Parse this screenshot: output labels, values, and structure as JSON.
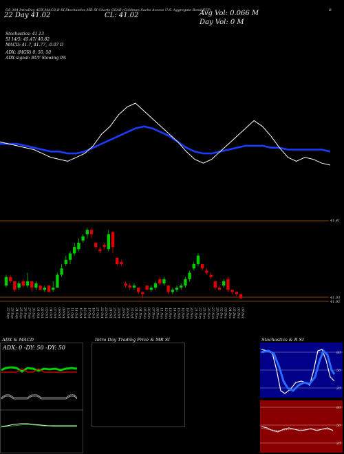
{
  "header": {
    "line1": "GS 304 IntraDay ADX,MACD,R SI,Stochastics,MR SI Charts GSAB (Goldman Sachs Access U.S. Aggregate Bond ETF)",
    "right_mark": "B",
    "left_date": "22 Day 41.02",
    "close_label": "CL: 41.02",
    "volume_label": "Avg Vol: 0.066 M",
    "day_vol_label": "Day Vol: 0 M"
  },
  "info_lines": [
    "Stochastics: 41.13",
    "SI 14/5: 45.47/ 40.82",
    "MACD: 41.7, 41.77, -0.07 D",
    "ADX: (MGR) 0, 50, 50",
    "ADX signal: BUY Slowing 0%"
  ],
  "price_labels": {
    "upper": "41.41",
    "lower1": "41.03",
    "lower2": "41.02"
  },
  "panels": {
    "adx_title": "ADX & MACD",
    "adx_text": "ADX: 0 -DY: 50 -DY: 50",
    "intra_title": "Intra Day Trading Price & MR SI",
    "stoch_title": "Stochastics & R SI",
    "stoch_ticks": [
      "80",
      "50",
      "20"
    ],
    "rsi_ticks": [
      "80",
      "50",
      "20"
    ]
  },
  "colors": {
    "up": "#00cc00",
    "down": "#e00000",
    "avg_line": "#1a3cff",
    "price_line": "#ffffff",
    "level_line": "#b35a00"
  },
  "chart_data": {
    "type": "line",
    "title": "GSAB",
    "dates": [
      "22 Sep",
      "23 Sep",
      "24 Sep",
      "25 Sep",
      "26 Sep",
      "27 Sep",
      "30 Sep",
      "01 Oct",
      "02 Oct",
      "03 Oct",
      "04 Oct",
      "07 Oct",
      "08 Oct",
      "09 Oct",
      "10 Oct",
      "11 Oct",
      "14 Oct",
      "15 Oct",
      "16 Oct",
      "17 Oct",
      "18 Oct",
      "21 Oct",
      "22 Oct",
      "23 Oct",
      "24 Oct",
      "25 Oct",
      "28 Oct",
      "29 Oct",
      "30 Oct",
      "31 Oct",
      "01 Nov",
      "04 Nov",
      "05 Nov",
      "06 Nov",
      "07 Nov",
      "08 Nov",
      "11 Nov",
      "12 Nov",
      "13 Nov",
      "14 Nov",
      "15 Nov",
      "18 Nov",
      "19 Nov",
      "20 Nov",
      "21 Nov",
      "22 Nov",
      "25 Nov",
      "26 Nov",
      "27 Nov",
      "29 Nov",
      "02 Dec",
      "03 Dec",
      "04 Dec",
      "05 Dec",
      "06 Dec",
      "09 Dec"
    ],
    "candles": [
      {
        "o": 41.08,
        "c": 41.12,
        "h": 41.13,
        "l": 41.07
      },
      {
        "o": 41.12,
        "c": 41.1,
        "h": 41.13,
        "l": 41.09
      },
      {
        "o": 41.1,
        "c": 41.06,
        "h": 41.1,
        "l": 41.05
      },
      {
        "o": 41.07,
        "c": 41.09,
        "h": 41.1,
        "l": 41.06
      },
      {
        "o": 41.1,
        "c": 41.08,
        "h": 41.11,
        "l": 41.07
      },
      {
        "o": 41.08,
        "c": 41.1,
        "h": 41.14,
        "l": 41.07
      },
      {
        "o": 41.1,
        "c": 41.07,
        "h": 41.1,
        "l": 41.05
      },
      {
        "o": 41.07,
        "c": 41.09,
        "h": 41.1,
        "l": 41.06
      },
      {
        "o": 41.08,
        "c": 41.06,
        "h": 41.08,
        "l": 41.06
      },
      {
        "o": 41.06,
        "c": 41.07,
        "h": 41.08,
        "l": 41.05
      },
      {
        "o": 41.08,
        "c": 41.05,
        "h": 41.08,
        "l": 41.05
      },
      {
        "o": 41.06,
        "c": 41.07,
        "h": 41.1,
        "l": 41.05
      },
      {
        "o": 41.07,
        "c": 41.13,
        "h": 41.14,
        "l": 41.07
      },
      {
        "o": 41.13,
        "c": 41.16,
        "h": 41.18,
        "l": 41.12
      },
      {
        "o": 41.18,
        "c": 41.2,
        "h": 41.22,
        "l": 41.17
      },
      {
        "o": 41.2,
        "c": 41.23,
        "h": 41.24,
        "l": 41.18
      },
      {
        "o": 41.23,
        "c": 41.26,
        "h": 41.28,
        "l": 41.22
      },
      {
        "o": 41.25,
        "c": 41.28,
        "h": 41.3,
        "l": 41.24
      },
      {
        "o": 41.29,
        "c": 41.31,
        "h": 41.32,
        "l": 41.28
      },
      {
        "o": 41.32,
        "c": 41.34,
        "h": 41.35,
        "l": 41.3
      },
      {
        "o": 41.34,
        "c": 41.32,
        "h": 41.35,
        "l": 41.3
      },
      {
        "o": 41.28,
        "c": 41.26,
        "h": 41.28,
        "l": 41.25
      },
      {
        "o": 41.25,
        "c": 41.24,
        "h": 41.26,
        "l": 41.23
      },
      {
        "o": 41.27,
        "c": 41.26,
        "h": 41.28,
        "l": 41.25
      },
      {
        "o": 41.25,
        "c": 41.32,
        "h": 41.34,
        "l": 41.24
      },
      {
        "o": 41.33,
        "c": 41.26,
        "h": 41.33,
        "l": 41.23
      },
      {
        "o": 41.21,
        "c": 41.18,
        "h": 41.21,
        "l": 41.17
      },
      {
        "o": 41.19,
        "c": 41.18,
        "h": 41.2,
        "l": 41.17
      },
      {
        "o": 41.09,
        "c": 41.08,
        "h": 41.1,
        "l": 41.07
      },
      {
        "o": 41.08,
        "c": 41.07,
        "h": 41.09,
        "l": 41.06
      },
      {
        "o": 41.07,
        "c": 41.08,
        "h": 41.09,
        "l": 41.06
      },
      {
        "o": 41.07,
        "c": 41.05,
        "h": 41.07,
        "l": 41.04
      },
      {
        "o": 41.05,
        "c": 41.04,
        "h": 41.05,
        "l": 41.02
      },
      {
        "o": 41.08,
        "c": 41.06,
        "h": 41.08,
        "l": 41.06
      },
      {
        "o": 41.06,
        "c": 41.07,
        "h": 41.08,
        "l": 41.05
      },
      {
        "o": 41.07,
        "c": 41.09,
        "h": 41.1,
        "l": 41.06
      },
      {
        "o": 41.11,
        "c": 41.09,
        "h": 41.12,
        "l": 41.08
      },
      {
        "o": 41.09,
        "c": 41.11,
        "h": 41.12,
        "l": 41.08
      },
      {
        "o": 41.08,
        "c": 41.05,
        "h": 41.08,
        "l": 41.04
      },
      {
        "o": 41.05,
        "c": 41.06,
        "h": 41.07,
        "l": 41.04
      },
      {
        "o": 41.06,
        "c": 41.07,
        "h": 41.08,
        "l": 41.05
      },
      {
        "o": 41.07,
        "c": 41.08,
        "h": 41.09,
        "l": 41.06
      },
      {
        "o": 41.08,
        "c": 41.11,
        "h": 41.12,
        "l": 41.07
      },
      {
        "o": 41.11,
        "c": 41.14,
        "h": 41.15,
        "l": 41.1
      },
      {
        "o": 41.16,
        "c": 41.18,
        "h": 41.19,
        "l": 41.15
      },
      {
        "o": 41.18,
        "c": 41.22,
        "h": 41.23,
        "l": 41.17
      },
      {
        "o": 41.18,
        "c": 41.16,
        "h": 41.18,
        "l": 41.15
      },
      {
        "o": 41.15,
        "c": 41.14,
        "h": 41.16,
        "l": 41.13
      },
      {
        "o": 41.13,
        "c": 41.12,
        "h": 41.14,
        "l": 41.11
      },
      {
        "o": 41.1,
        "c": 41.07,
        "h": 41.1,
        "l": 41.06
      },
      {
        "o": 41.07,
        "c": 41.06,
        "h": 41.08,
        "l": 41.06
      },
      {
        "o": 41.08,
        "c": 41.1,
        "h": 41.11,
        "l": 41.07
      },
      {
        "o": 41.11,
        "c": 41.06,
        "h": 41.12,
        "l": 41.05
      },
      {
        "o": 41.06,
        "c": 41.05,
        "h": 41.06,
        "l": 41.04
      },
      {
        "o": 41.05,
        "c": 41.04,
        "h": 41.05,
        "l": 41.03
      },
      {
        "o": 41.04,
        "c": 41.02,
        "h": 41.04,
        "l": 41.02
      }
    ],
    "price_line": [
      41.14,
      41.13,
      41.12,
      41.11,
      41.1,
      41.08,
      41.06,
      41.05,
      41.04,
      41.06,
      41.08,
      41.12,
      41.18,
      41.22,
      41.28,
      41.32,
      41.34,
      41.3,
      41.26,
      41.22,
      41.18,
      41.14,
      41.09,
      41.05,
      41.03,
      41.05,
      41.09,
      41.13,
      41.17,
      41.21,
      41.25,
      41.22,
      41.17,
      41.11,
      41.06,
      41.04,
      41.06,
      41.05,
      41.03,
      41.02
    ],
    "avg_line": [
      41.13,
      41.13,
      41.13,
      41.12,
      41.11,
      41.1,
      41.09,
      41.09,
      41.08,
      41.08,
      41.09,
      41.11,
      41.13,
      41.15,
      41.17,
      41.19,
      41.21,
      41.22,
      41.21,
      41.19,
      41.17,
      41.14,
      41.11,
      41.09,
      41.08,
      41.08,
      41.09,
      41.1,
      41.11,
      41.12,
      41.12,
      41.12,
      41.11,
      41.11,
      41.1,
      41.1,
      41.1,
      41.1,
      41.1,
      41.09
    ],
    "levels": [
      41.41,
      41.03,
      41.02
    ],
    "ylim": [
      41.0,
      41.45
    ]
  }
}
